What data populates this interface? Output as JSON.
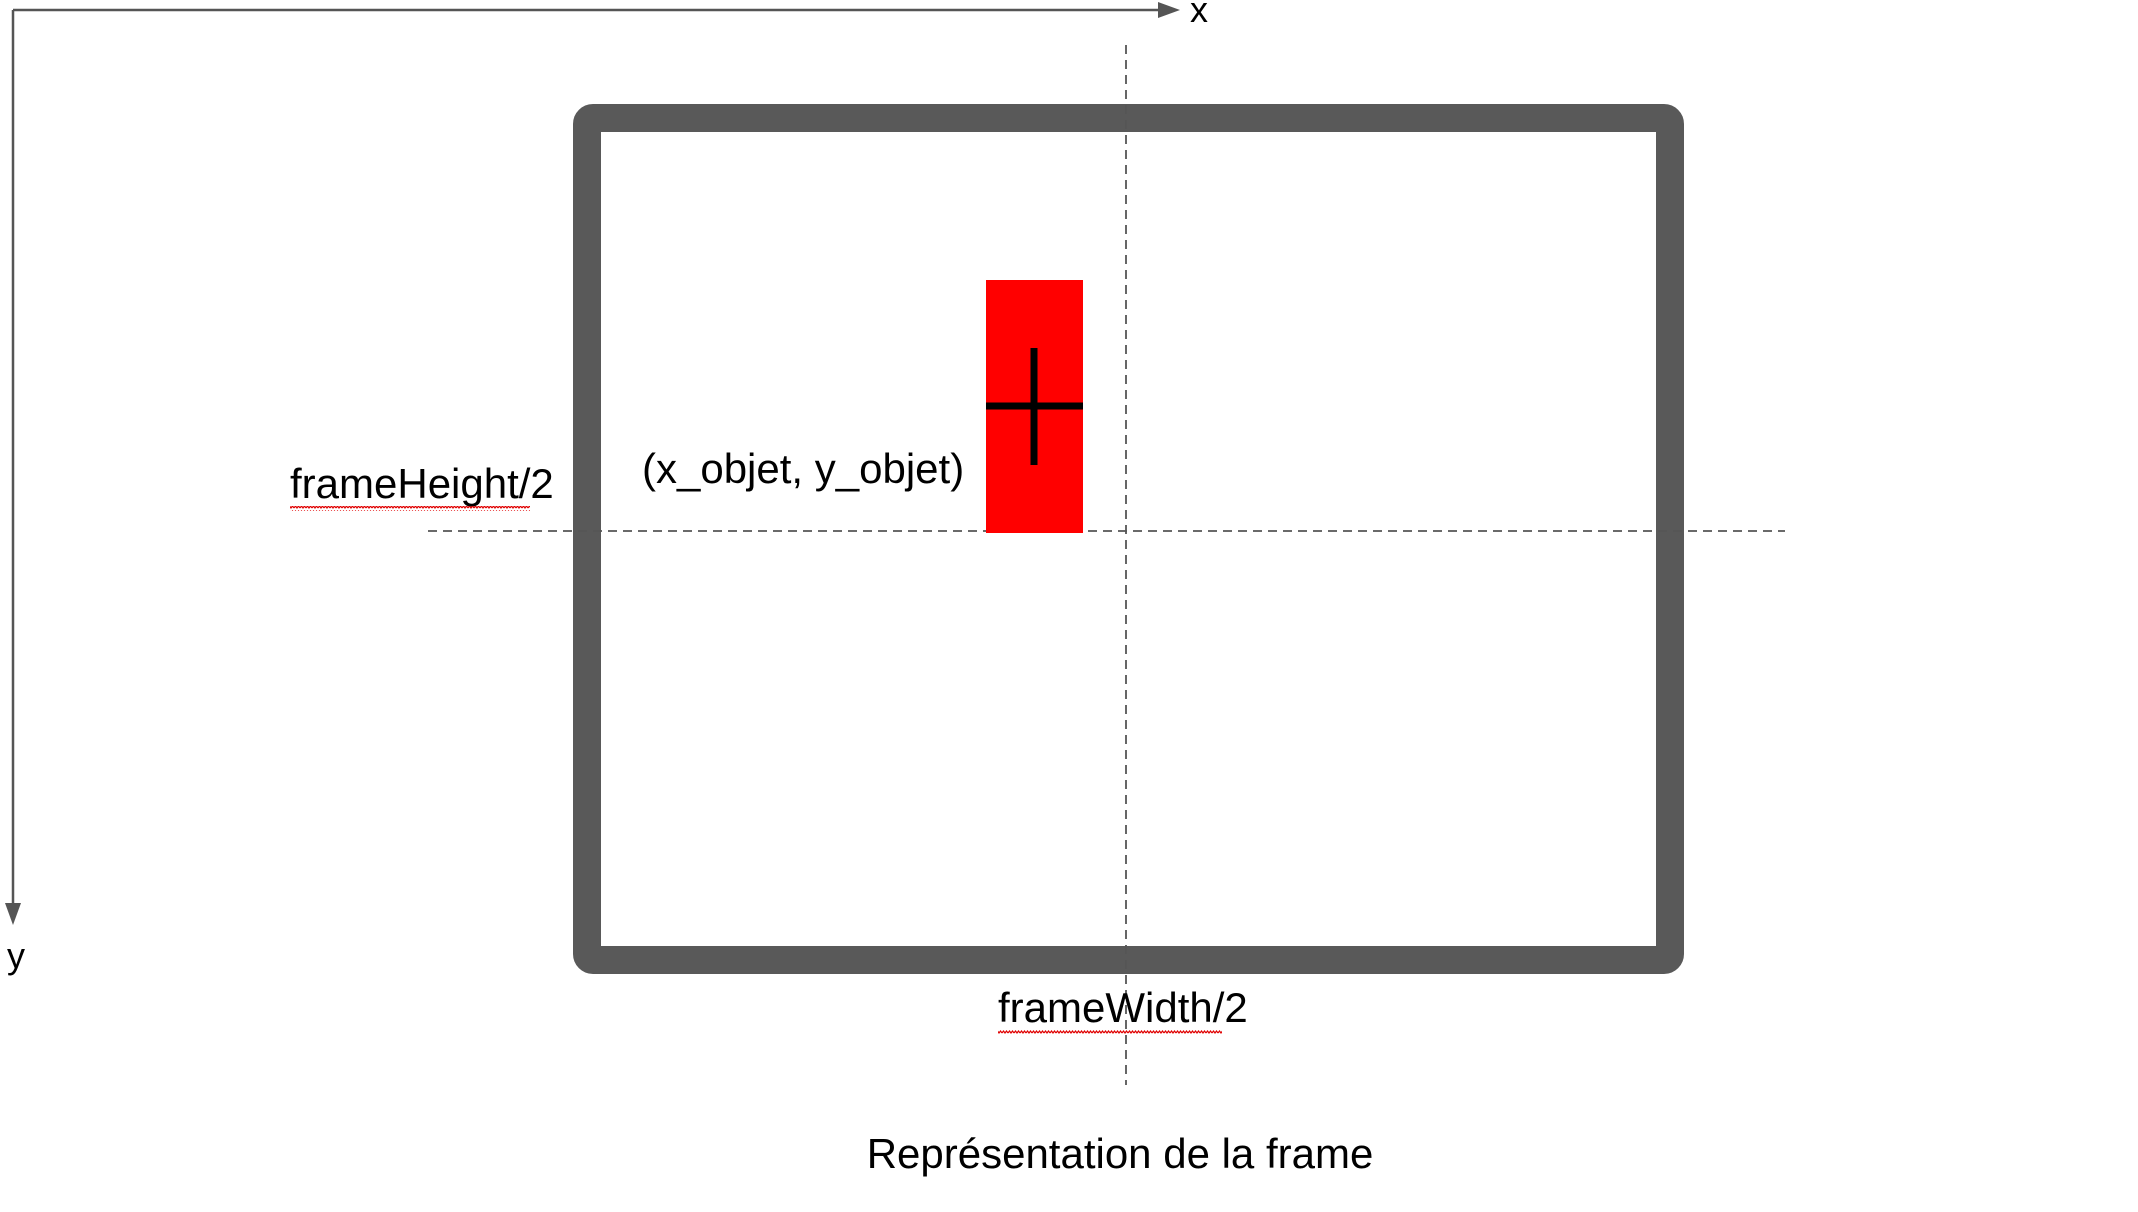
{
  "axes": {
    "x_label": "x",
    "y_label": "y"
  },
  "labels": {
    "frame_height_half": "frameHeight/2",
    "frame_width_half": "frameWidth/2",
    "object_coords": "(x_objet, y_objet)"
  },
  "caption": "Représentation de la frame",
  "colors": {
    "frame_border": "#595959",
    "object_fill": "#ff0000",
    "axis": "#555555",
    "dashed_line": "#555555",
    "crosshair": "#000000",
    "spellcheck_underline": "#e00000",
    "text": "#000000"
  }
}
